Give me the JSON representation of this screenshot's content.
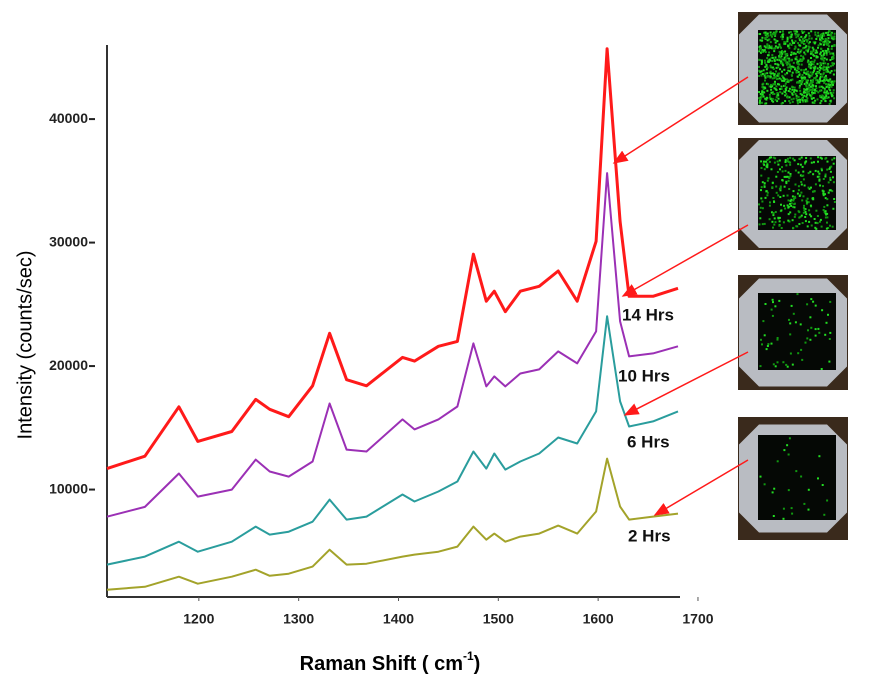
{
  "chart_data": {
    "type": "line",
    "y_label": "Intensity  (counts/sec)",
    "x_label": "Raman Shift ( cm",
    "x_label_sup": "-1",
    "x_label_end": ")",
    "x": [
      1108,
      1146,
      1180,
      1199,
      1233,
      1257,
      1271,
      1290,
      1314,
      1331,
      1348,
      1368,
      1404,
      1416,
      1440,
      1459,
      1475,
      1488,
      1496,
      1507,
      1522,
      1541,
      1560,
      1579,
      1598,
      1609,
      1622,
      1631,
      1655,
      1680
    ],
    "series": [
      {
        "name": "14 Hrs",
        "color": "#ff1a1a",
        "values": [
          11700,
          12700,
          16700,
          13900,
          14700,
          17300,
          16500,
          15900,
          18400,
          22650,
          18900,
          18400,
          20700,
          20400,
          21600,
          22000,
          29060,
          25250,
          26060,
          24400,
          26060,
          26460,
          27700,
          25250,
          30100,
          45700,
          31700,
          25650,
          25650,
          26300
        ]
      },
      {
        "name": "10 Hrs",
        "color": "#9b30b5",
        "values": [
          7800,
          8600,
          11300,
          9430,
          10000,
          12430,
          11460,
          11050,
          12270,
          16970,
          13240,
          13080,
          15680,
          14870,
          15680,
          16730,
          21840,
          18350,
          19160,
          18350,
          19400,
          19730,
          21190,
          20220,
          22810,
          35630,
          23620,
          20780,
          21030,
          21600
        ]
      },
      {
        "name": "6 Hrs",
        "color": "#2a9d9d",
        "values": [
          3920,
          4570,
          5780,
          4970,
          5780,
          7000,
          6350,
          6590,
          7400,
          9190,
          7570,
          7810,
          9600,
          9030,
          9840,
          10650,
          13080,
          11700,
          12920,
          11620,
          12270,
          12920,
          14220,
          13730,
          16330,
          24030,
          17140,
          15110,
          15520,
          16330
        ]
      },
      {
        "name": "2 Hrs",
        "color": "#a3a32a",
        "values": [
          1890,
          2130,
          2940,
          2380,
          2940,
          3510,
          3020,
          3190,
          3760,
          5130,
          3920,
          4000,
          4570,
          4730,
          4970,
          5380,
          7000,
          5940,
          6430,
          5780,
          6190,
          6430,
          7080,
          6430,
          8220,
          12510,
          8620,
          7570,
          7810,
          8050
        ]
      }
    ],
    "xlim": [
      1108,
      1682
    ],
    "xticks": [
      1200,
      1300,
      1400,
      1500,
      1600,
      1700
    ],
    "ylim": [
      1300,
      46000
    ],
    "yticks": [
      10000,
      20000,
      30000,
      40000
    ],
    "grid": false
  }
}
